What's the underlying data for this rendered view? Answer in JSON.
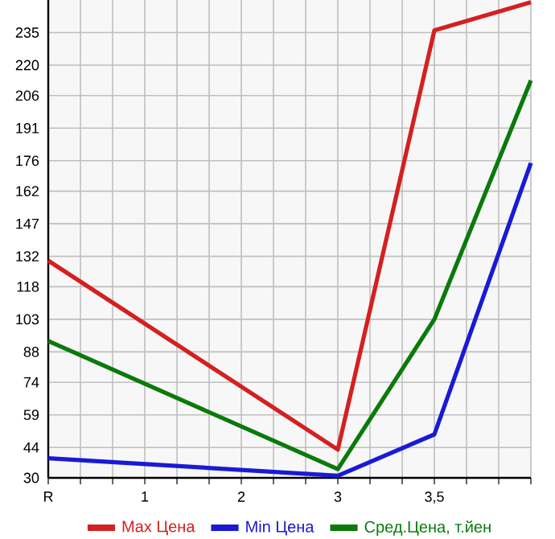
{
  "chart_data": {
    "type": "line",
    "categories": [
      "R",
      "1",
      "2",
      "3",
      "3,5",
      null
    ],
    "series": [
      {
        "name": "Max Цена",
        "color": "#d42020",
        "values": [
          130,
          null,
          null,
          43,
          236,
          249
        ]
      },
      {
        "name": "Min Цена",
        "color": "#1a1ad6",
        "values": [
          39,
          null,
          null,
          31,
          50,
          175
        ]
      },
      {
        "name": "Сред.Цена, т.йен",
        "color": "#0a7a0a",
        "values": [
          93,
          null,
          null,
          34,
          103,
          213
        ]
      }
    ],
    "ylim": [
      30,
      250
    ],
    "yticks": [
      30,
      44,
      59,
      74,
      88,
      103,
      118,
      132,
      147,
      162,
      176,
      191,
      206,
      220,
      235
    ],
    "grid": true,
    "legend": "bottom"
  }
}
